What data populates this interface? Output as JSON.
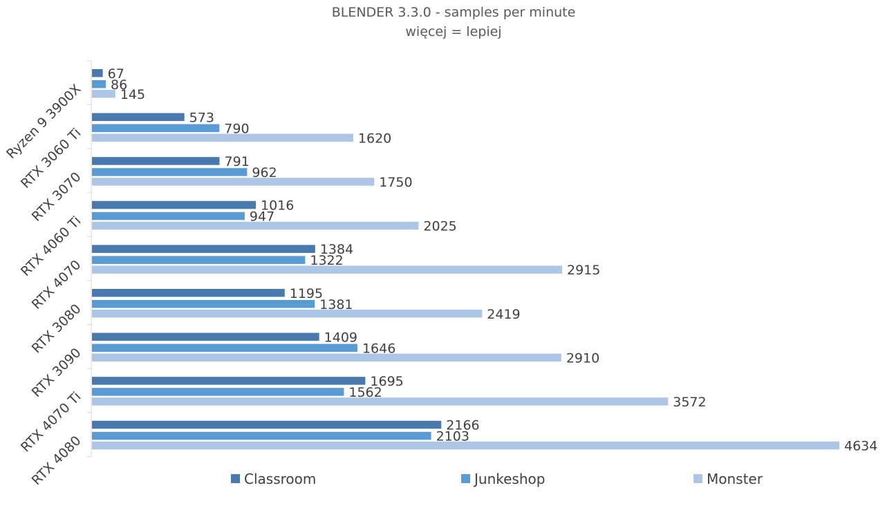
{
  "chart_data": {
    "type": "bar",
    "orientation": "horizontal",
    "title": "BLENDER 3.3.0 - samples per minute",
    "subtitle": "więcej = lepiej",
    "categories": [
      "Ryzen 9 3900X",
      "RTX 3060 Ti",
      "RTX 3070",
      "RTX 4060 Ti",
      "RTX 4070",
      "RTX 3080",
      "RTX 3090",
      "RTX 4070 Ti",
      "RTX 4080"
    ],
    "series": [
      {
        "name": "Classroom",
        "color": "#4a7aad",
        "values": [
          67,
          573,
          791,
          1016,
          1384,
          1195,
          1409,
          1695,
          2166
        ]
      },
      {
        "name": "Junkeshop",
        "color": "#5b9bd5",
        "values": [
          86,
          790,
          962,
          947,
          1322,
          1381,
          1646,
          1562,
          2103
        ]
      },
      {
        "name": "Monster",
        "color": "#adc6e6",
        "values": [
          145,
          1620,
          1750,
          2025,
          2915,
          2419,
          2910,
          3572,
          4634
        ]
      }
    ],
    "xlim": [
      0,
      4634
    ],
    "grid": false,
    "data_labels": true,
    "legend_position": "bottom"
  }
}
